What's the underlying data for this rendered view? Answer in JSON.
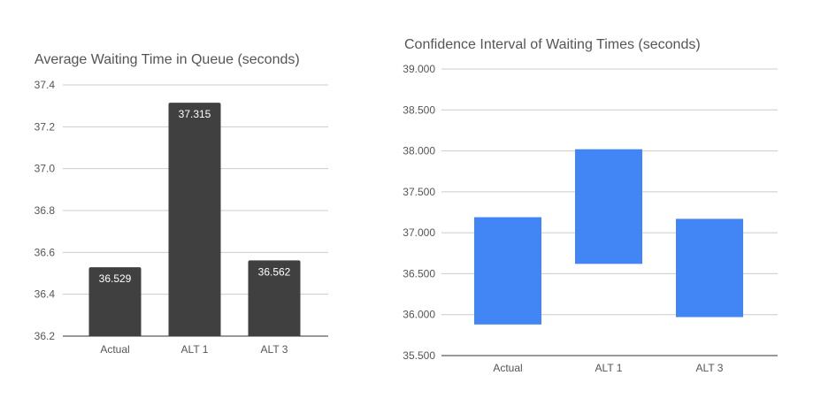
{
  "chart_data": [
    {
      "type": "bar",
      "title": "Average Waiting Time in Queue (seconds)",
      "xlabel": "",
      "ylabel": "",
      "categories": [
        "Actual",
        "ALT 1",
        "ALT 3"
      ],
      "values": [
        36.529,
        37.315,
        36.562
      ],
      "data_labels": [
        "36.529",
        "37.315",
        "36.562"
      ],
      "ylim": [
        36.2,
        37.4
      ],
      "yticks": [
        36.2,
        36.4,
        36.6,
        36.8,
        37.0,
        37.2,
        37.4
      ],
      "ytick_labels": [
        "36.2",
        "36.4",
        "36.6",
        "36.8",
        "37.0",
        "37.2",
        "37.4"
      ],
      "bar_color": "#404040",
      "grid": true,
      "legend": "none"
    },
    {
      "type": "bar",
      "subtype": "floating-range",
      "title": "Confidence Interval of Waiting Times (seconds)",
      "xlabel": "",
      "ylabel": "",
      "categories": [
        "Actual",
        "ALT 1",
        "ALT 3"
      ],
      "ranges": [
        [
          35.88,
          37.19
        ],
        [
          36.62,
          38.02
        ],
        [
          35.97,
          37.17
        ]
      ],
      "ylim": [
        35.5,
        39.0
      ],
      "yticks": [
        35.5,
        36.0,
        36.5,
        37.0,
        37.5,
        38.0,
        38.5,
        39.0
      ],
      "ytick_labels": [
        "35.500",
        "36.000",
        "36.500",
        "37.000",
        "37.500",
        "38.000",
        "38.500",
        "39.000"
      ],
      "bar_color": "#4285f4",
      "grid": true,
      "legend": "none"
    }
  ]
}
